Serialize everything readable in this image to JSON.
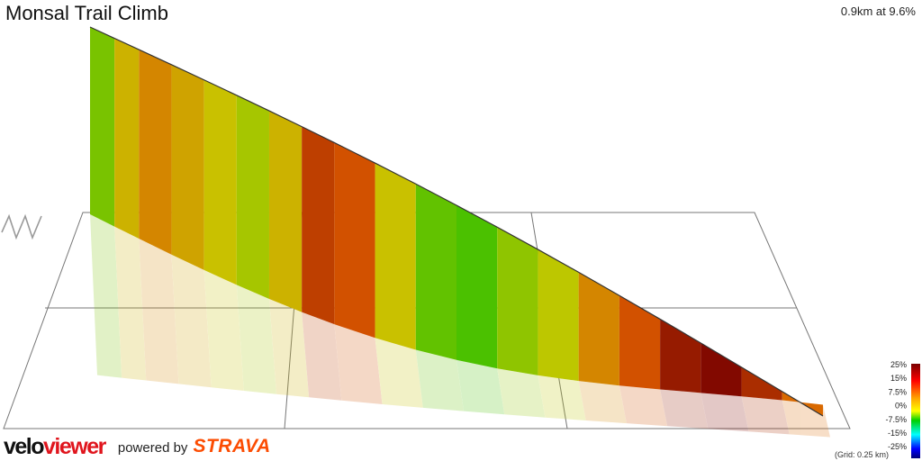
{
  "header": {
    "title": "Monsal Trail Climb",
    "summary": "0.9km at 9.6%"
  },
  "footer": {
    "logo_part1": "velo",
    "logo_part2": "viewer",
    "powered_by": "powered by",
    "strava_logo": "STRAVA",
    "grid_note": "(Grid: 0.25 km)"
  },
  "chart_data": {
    "type": "area",
    "title": "Monsal Trail Climb",
    "subtitle": "0.9km at 9.6%",
    "xlabel": "",
    "ylabel": "",
    "x_unit": "km",
    "grid_spacing_km": 0.25,
    "distance_km": [
      0,
      0.03,
      0.06,
      0.1,
      0.14,
      0.18,
      0.22,
      0.26,
      0.3,
      0.35,
      0.4,
      0.45,
      0.5,
      0.55,
      0.6,
      0.65,
      0.7,
      0.75,
      0.8,
      0.85,
      0.9
    ],
    "gradient_pct": [
      4,
      9,
      12,
      10,
      8,
      6,
      9,
      18,
      16,
      8,
      3,
      2,
      5,
      7,
      12,
      16,
      22,
      24,
      20,
      14,
      2
    ],
    "colorscale": {
      "ticks": [
        "25%",
        "15%",
        "7.5%",
        "0%",
        "-7.5%",
        "-15%",
        "-25%"
      ],
      "range": [
        -25,
        25
      ],
      "colors": [
        "#8b0000",
        "#ff0000",
        "#ff8000",
        "#ffff00",
        "#00cc00",
        "#00ffff",
        "#0000ff"
      ]
    },
    "grid": true
  }
}
